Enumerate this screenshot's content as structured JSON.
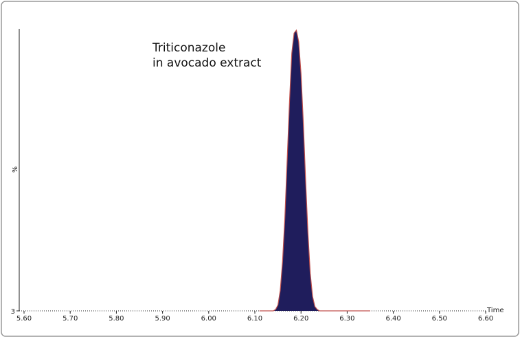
{
  "chart_data": {
    "type": "area",
    "annotation": [
      "Triticonazole",
      "in avocado extract"
    ],
    "x_label": "Time",
    "y_label": "%",
    "x": [
      6.11,
      6.12,
      6.13,
      6.14,
      6.145,
      6.15,
      6.155,
      6.16,
      6.165,
      6.17,
      6.175,
      6.18,
      6.185,
      6.19,
      6.195,
      6.2,
      6.205,
      6.21,
      6.215,
      6.22,
      6.225,
      6.23,
      6.235,
      6.24,
      6.26,
      6.28,
      6.3,
      6.35
    ],
    "values": [
      3,
      3,
      3,
      3,
      3.5,
      5,
      10,
      20,
      35,
      55,
      75,
      92,
      99,
      100,
      96,
      85,
      68,
      48,
      30,
      16,
      8,
      4.5,
      3.5,
      3,
      3,
      3,
      3,
      3
    ],
    "color": "#1f1d5c",
    "line_color": "#c0504d",
    "xlim": [
      5.6,
      6.6
    ],
    "xticks": [
      {
        "value": 5.6,
        "label": "5.60"
      },
      {
        "value": 5.7,
        "label": "5.70"
      },
      {
        "value": 5.8,
        "label": "5.80"
      },
      {
        "value": 5.9,
        "label": "5.90"
      },
      {
        "value": 6.0,
        "label": "6.00"
      },
      {
        "value": 6.1,
        "label": "6.10"
      },
      {
        "value": 6.2,
        "label": "6.20"
      },
      {
        "value": 6.3,
        "label": "6.30"
      },
      {
        "value": 6.4,
        "label": "6.40"
      },
      {
        "value": 6.5,
        "label": "6.50"
      },
      {
        "value": 6.6,
        "label": "6.60"
      }
    ],
    "ylim": [
      3,
      100
    ],
    "yticks": [
      3
    ]
  }
}
